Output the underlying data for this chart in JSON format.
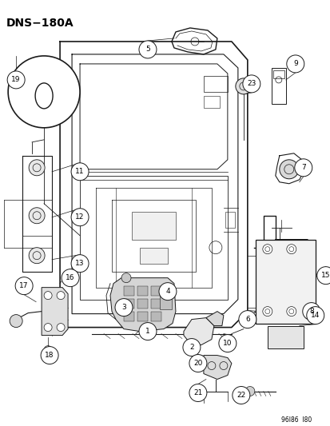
{
  "title": "DNS−180A",
  "footer": "96I86  I80",
  "bg_color": "#ffffff",
  "lc": "#1a1a1a",
  "fig_w": 4.14,
  "fig_h": 5.33,
  "dpi": 100
}
